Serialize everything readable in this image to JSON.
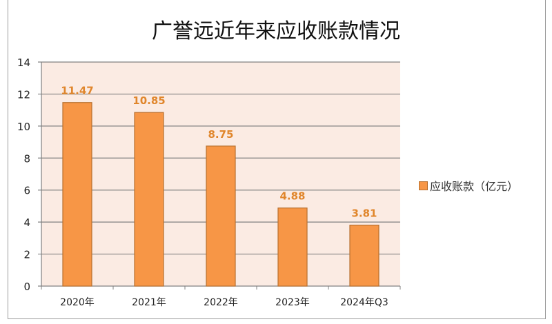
{
  "chart_data": {
    "type": "bar",
    "title": "广誉远近年来应收账款情况",
    "categories": [
      "2020年",
      "2021年",
      "2022年",
      "2023年",
      "2024年Q3"
    ],
    "series": [
      {
        "name": "应收账款（亿元）",
        "values": [
          11.47,
          10.85,
          8.75,
          4.88,
          3.81
        ]
      }
    ],
    "data_labels": [
      "11.47",
      "10.85",
      "8.75",
      "4.88",
      "3.81"
    ],
    "yticks": [
      "0",
      "2",
      "4",
      "6",
      "8",
      "10",
      "12",
      "14"
    ],
    "ylim": [
      0,
      14
    ],
    "xlabel": "",
    "ylabel": "",
    "grid": true,
    "legend": "right",
    "colors": {
      "bar": "#f79646",
      "bar_border": "#b8702f",
      "label": "#e0862c",
      "plot_bg": "#fbebe3"
    }
  }
}
